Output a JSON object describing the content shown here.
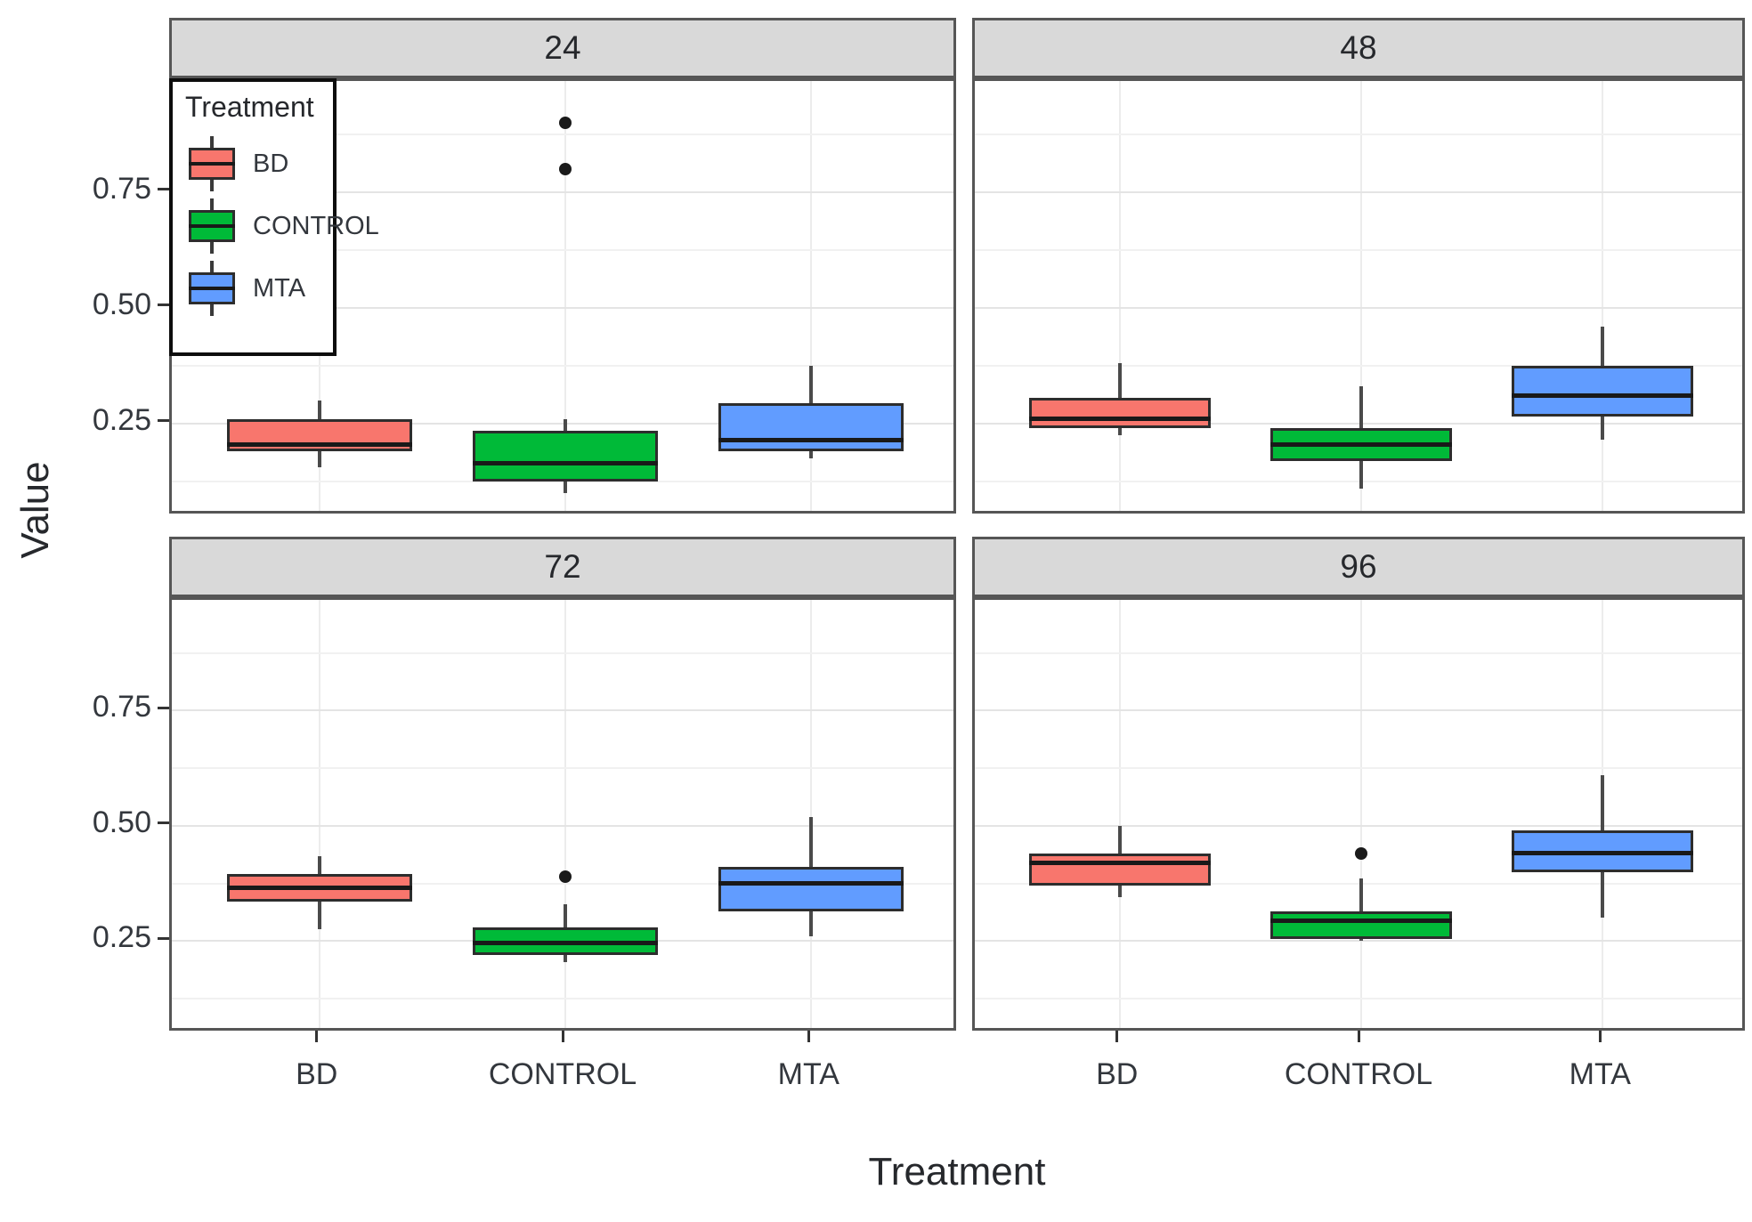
{
  "chart_data": {
    "type": "boxplot",
    "facet_layout": "2x2",
    "y_axis": {
      "label": "Value",
      "ticks": [
        0.25,
        0.5,
        0.75
      ],
      "tick_labels": [
        "0.25",
        "0.50",
        "0.75"
      ],
      "minor_gridlines": [
        0.125,
        0.375,
        0.625,
        0.875
      ],
      "range": [
        0.05,
        0.99
      ],
      "grid": true
    },
    "x_axis": {
      "label": "Treatment",
      "categories": [
        "BD",
        "CONTROL",
        "MTA"
      ]
    },
    "legend": {
      "title": "Treatment",
      "position": "top-left-panel-inset",
      "entries": [
        {
          "label": "BD",
          "color": "#F8766D"
        },
        {
          "label": "CONTROL",
          "color": "#00BA38"
        },
        {
          "label": "MTA",
          "color": "#619CFF"
        }
      ]
    },
    "facets": [
      {
        "label": "24",
        "boxes": [
          {
            "category": "BD",
            "color": "#F8766D",
            "whisker_low": 0.155,
            "q1": 0.19,
            "median": 0.205,
            "q3": 0.26,
            "whisker_high": 0.3,
            "outliers": []
          },
          {
            "category": "CONTROL",
            "color": "#00BA38",
            "whisker_low": 0.1,
            "q1": 0.125,
            "median": 0.165,
            "q3": 0.235,
            "whisker_high": 0.26,
            "outliers": [
              0.8,
              0.9
            ]
          },
          {
            "category": "MTA",
            "color": "#619CFF",
            "whisker_low": 0.175,
            "q1": 0.19,
            "median": 0.215,
            "q3": 0.295,
            "whisker_high": 0.375,
            "outliers": []
          }
        ]
      },
      {
        "label": "48",
        "boxes": [
          {
            "category": "BD",
            "color": "#F8766D",
            "whisker_low": 0.225,
            "q1": 0.24,
            "median": 0.26,
            "q3": 0.305,
            "whisker_high": 0.38,
            "outliers": []
          },
          {
            "category": "CONTROL",
            "color": "#00BA38",
            "whisker_low": 0.11,
            "q1": 0.17,
            "median": 0.205,
            "q3": 0.24,
            "whisker_high": 0.33,
            "outliers": []
          },
          {
            "category": "MTA",
            "color": "#619CFF",
            "whisker_low": 0.215,
            "q1": 0.265,
            "median": 0.31,
            "q3": 0.375,
            "whisker_high": 0.46,
            "outliers": []
          }
        ]
      },
      {
        "label": "72",
        "boxes": [
          {
            "category": "BD",
            "color": "#F8766D",
            "whisker_low": 0.275,
            "q1": 0.335,
            "median": 0.365,
            "q3": 0.395,
            "whisker_high": 0.435,
            "outliers": []
          },
          {
            "category": "CONTROL",
            "color": "#00BA38",
            "whisker_low": 0.205,
            "q1": 0.22,
            "median": 0.245,
            "q3": 0.28,
            "whisker_high": 0.33,
            "outliers": [
              0.39
            ]
          },
          {
            "category": "MTA",
            "color": "#619CFF",
            "whisker_low": 0.26,
            "q1": 0.315,
            "median": 0.375,
            "q3": 0.41,
            "whisker_high": 0.52,
            "outliers": []
          }
        ]
      },
      {
        "label": "96",
        "boxes": [
          {
            "category": "BD",
            "color": "#F8766D",
            "whisker_low": 0.345,
            "q1": 0.37,
            "median": 0.42,
            "q3": 0.44,
            "whisker_high": 0.5,
            "outliers": []
          },
          {
            "category": "CONTROL",
            "color": "#00BA38",
            "whisker_low": 0.25,
            "q1": 0.255,
            "median": 0.295,
            "q3": 0.315,
            "whisker_high": 0.385,
            "outliers": [
              0.44
            ]
          },
          {
            "category": "MTA",
            "color": "#619CFF",
            "whisker_low": 0.3,
            "q1": 0.4,
            "median": 0.44,
            "q3": 0.49,
            "whisker_high": 0.61,
            "outliers": []
          }
        ]
      }
    ],
    "style": {
      "strip_bg": "#d9d9d9",
      "panel_border": "#565656",
      "grid_major": "#e4e4e4",
      "grid_minor": "#f1f1f1",
      "whisker_color": "#4a4a4a",
      "median_color": "#191919",
      "text_color": "#33373d"
    }
  }
}
